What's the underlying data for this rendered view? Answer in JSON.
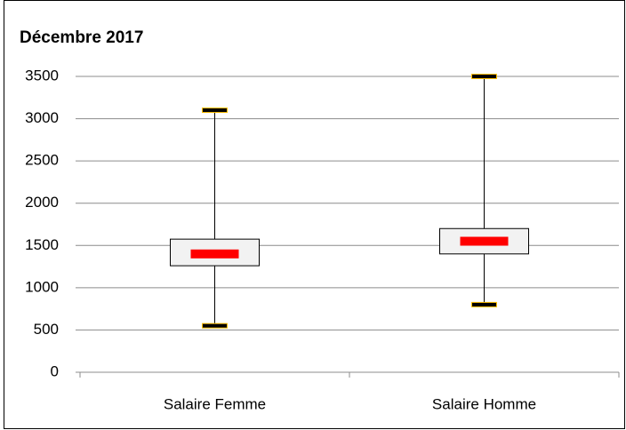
{
  "chart_data": {
    "type": "box",
    "title": "Décembre 2017",
    "categories": [
      "Salaire Femme",
      "Salaire Homme"
    ],
    "boxes": [
      {
        "min": 550,
        "q1": 1260,
        "median": 1400,
        "q3": 1575,
        "max": 3100
      },
      {
        "min": 800,
        "q1": 1400,
        "median": 1550,
        "q3": 1700,
        "max": 3500
      }
    ],
    "box_color": "#f2f2f2",
    "median_color": "#ff0000",
    "cap_color": "#000000",
    "cap_border": "#ffc000",
    "ylim": [
      0,
      3500
    ],
    "yticks": [
      0,
      500,
      1000,
      1500,
      2000,
      2500,
      3000,
      3500
    ],
    "grid": true
  }
}
